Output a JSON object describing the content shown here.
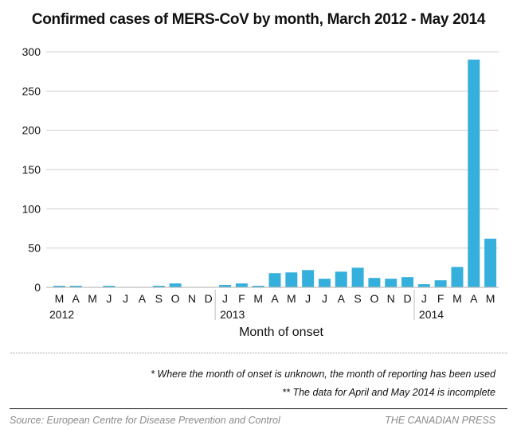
{
  "chart_data": {
    "type": "bar",
    "title": "Confirmed cases of MERS-CoV by month, March 2012 - May 2014",
    "xlabel": "Month of onset",
    "ylabel": "",
    "ylim": [
      0,
      300
    ],
    "yticks": [
      0,
      50,
      100,
      150,
      200,
      250,
      300
    ],
    "grid": true,
    "bar_color": "#35b0dc",
    "categories": [
      "M",
      "A",
      "M",
      "J",
      "J",
      "A",
      "S",
      "O",
      "N",
      "D",
      "J",
      "F",
      "M",
      "A",
      "M",
      "J",
      "J",
      "A",
      "S",
      "O",
      "N",
      "D",
      "J",
      "F",
      "M",
      "A",
      "M"
    ],
    "year_groups": [
      {
        "label": "2012",
        "start": 0,
        "count": 10
      },
      {
        "label": "2013",
        "start": 10,
        "count": 12
      },
      {
        "label": "2014",
        "start": 22,
        "count": 5
      }
    ],
    "values": [
      1,
      1,
      0,
      1,
      0,
      0,
      1,
      5,
      0,
      0,
      3,
      5,
      1,
      18,
      19,
      22,
      11,
      20,
      25,
      12,
      11,
      13,
      4,
      9,
      26,
      290,
      62
    ]
  },
  "notes": [
    "* Where the month of onset is unknown, the month of reporting has been used",
    "** The data for April and May 2014 is incomplete"
  ],
  "footer": {
    "source": "Source: European Centre for Disease Prevention and Control",
    "credit": "THE CANADIAN PRESS"
  }
}
